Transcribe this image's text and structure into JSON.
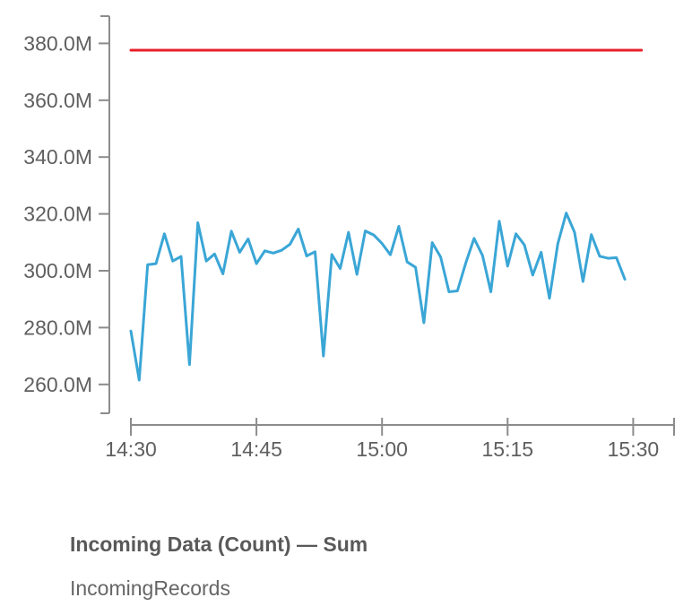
{
  "chart_data": {
    "type": "line",
    "title": "Incoming Data (Count) — Sum",
    "subtitle": "IncomingRecords",
    "xlabel": "",
    "ylabel": "",
    "ylim": [
      250,
      385
    ],
    "xlim": [
      "14:30",
      "15:31"
    ],
    "y_ticks": [
      {
        "value": 380,
        "label": "380.0M"
      },
      {
        "value": 360,
        "label": "360.0M"
      },
      {
        "value": 340,
        "label": "340.0M"
      },
      {
        "value": 320,
        "label": "320.0M"
      },
      {
        "value": 300,
        "label": "300.0M"
      },
      {
        "value": 280,
        "label": "280.0M"
      },
      {
        "value": 260,
        "label": "260.0M"
      }
    ],
    "x_ticks": [
      "14:30",
      "14:45",
      "15:00",
      "15:15",
      "15:30"
    ],
    "series": [
      {
        "color": "#3aa6d6",
        "x": [
          "14:30",
          "14:31",
          "14:32",
          "14:33",
          "14:34",
          "14:35",
          "14:36",
          "14:37",
          "14:38",
          "14:39",
          "14:40",
          "14:41",
          "14:42",
          "14:43",
          "14:44",
          "14:45",
          "14:46",
          "14:47",
          "14:48",
          "14:49",
          "14:50",
          "14:51",
          "14:52",
          "14:53",
          "14:54",
          "14:55",
          "14:56",
          "14:57",
          "14:58",
          "14:59",
          "15:00",
          "15:01",
          "15:02",
          "15:03",
          "15:04",
          "15:05",
          "15:06",
          "15:07",
          "15:08",
          "15:09",
          "15:10",
          "15:11",
          "15:12",
          "15:13",
          "15:14",
          "15:15",
          "15:16",
          "15:17",
          "15:18",
          "15:19",
          "15:20",
          "15:21",
          "15:22",
          "15:23",
          "15:24",
          "15:25",
          "15:26",
          "15:27",
          "15:28",
          "15:29"
        ],
        "values": [
          278.8,
          261.5,
          302.1,
          302.5,
          313.0,
          303.4,
          305.0,
          267.0,
          316.9,
          303.4,
          305.9,
          298.9,
          313.9,
          306.5,
          311.2,
          302.5,
          307.0,
          306.2,
          307.2,
          309.3,
          314.7,
          305.2,
          306.7,
          270.0,
          305.7,
          300.8,
          313.5,
          298.7,
          314.0,
          312.6,
          309.6,
          305.6,
          315.6,
          303.1,
          301.2,
          281.7,
          309.9,
          304.8,
          292.6,
          292.9,
          302.7,
          311.4,
          305.4,
          292.6,
          317.4,
          301.6,
          313.0,
          309.1,
          298.5,
          306.5,
          290.3,
          309.5,
          320.3,
          313.5,
          296.2,
          312.7,
          305.1,
          304.4,
          304.6,
          297.0
        ]
      },
      {
        "color": "#e8202a",
        "x": [
          "14:30",
          "15:31"
        ],
        "values": [
          377.6,
          377.6
        ]
      }
    ],
    "grid": false,
    "legend": "none"
  }
}
